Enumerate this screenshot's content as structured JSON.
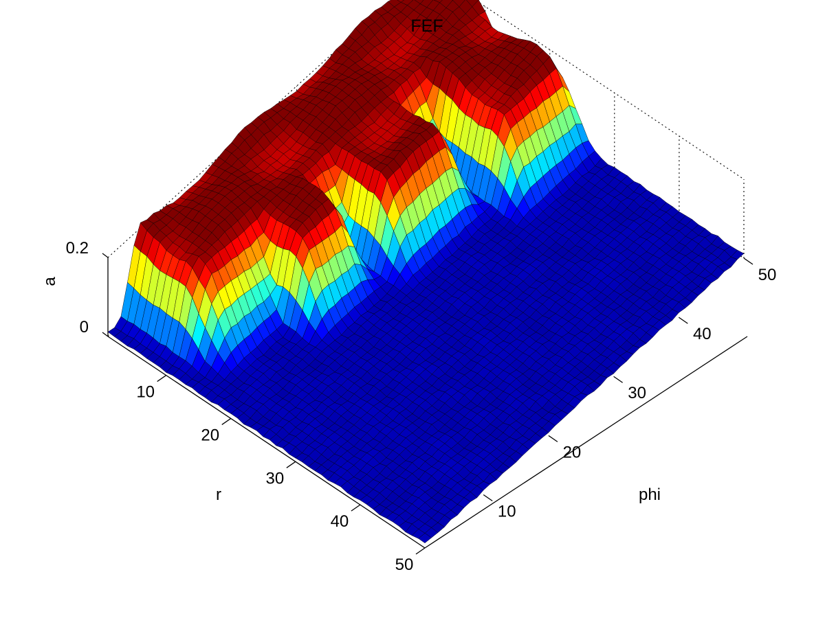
{
  "chart_data": {
    "type": "surface",
    "title": "FEF",
    "xlabel": "r",
    "ylabel": "phi",
    "zlabel": "a",
    "xlim": [
      1,
      50
    ],
    "ylim": [
      1,
      50
    ],
    "zlim": [
      0,
      0.2
    ],
    "x_ticks": [
      "10",
      "20",
      "30",
      "40",
      "50"
    ],
    "y_ticks": [
      "10",
      "20",
      "30",
      "40",
      "50"
    ],
    "z_ticks": [
      "0",
      "0.2"
    ],
    "grid": true,
    "colormap": "jet",
    "grid_size": [
      50,
      50
    ],
    "baseline": 0.01,
    "ridge": {
      "r_range": [
        1,
        15
      ],
      "phi_range": [
        5,
        50
      ],
      "peak": 0.2
    },
    "lobes": [
      {
        "phi_range": [
          40,
          50
        ],
        "r_reach": 26
      },
      {
        "phi_range": [
          26,
          36
        ],
        "r_reach": 22
      },
      {
        "phi_range": [
          15,
          22
        ],
        "r_reach": 20
      },
      {
        "phi_range": [
          5,
          12
        ],
        "r_reach": 13
      }
    ]
  }
}
